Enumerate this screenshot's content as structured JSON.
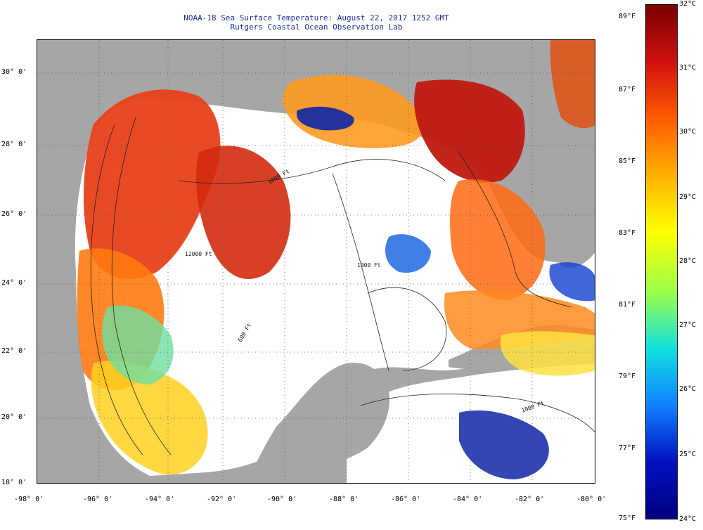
{
  "title_line_1": "NOAA-18 Sea Surface Temperature:  August 22, 2017 1252 GMT",
  "title_line_2": "Rutgers Coastal Ocean Observation Lab",
  "x_ticks": [
    "-98° 0'",
    "-96° 0'",
    "-94° 0'",
    "-92° 0'",
    "-90° 0'",
    "-88° 0'",
    "-86° 0'",
    "-84° 0'",
    "-82° 0'",
    "-80° 0'"
  ],
  "y_ticks": [
    "30° 0'",
    "28° 0'",
    "26° 0'",
    "24° 0'",
    "22° 0'",
    "20° 0'",
    "18° 0'"
  ],
  "contour_labels": [
    "1000 Ft",
    "1000 Ft",
    "600 Ft",
    "12000 Ft",
    "1000 Ft"
  ],
  "colorbar": {
    "celsius": [
      "32°C",
      "31°C",
      "30°C",
      "29°C",
      "28°C",
      "27°C",
      "26°C",
      "25°C",
      "24°C"
    ],
    "fahrenheit": [
      "89°F",
      "87°F",
      "85°F",
      "83°F",
      "81°F",
      "79°F",
      "77°F",
      "75°F"
    ],
    "colors": [
      "#7a0000",
      "#d01010",
      "#ff5a00",
      "#ffb000",
      "#ffff00",
      "#9aff4a",
      "#10e0e0",
      "#1080ff",
      "#0010c0",
      "#000080"
    ]
  },
  "map_colors": {
    "land": "#a6a6a6",
    "no_data": "#ffffff",
    "grid": "#555555"
  }
}
